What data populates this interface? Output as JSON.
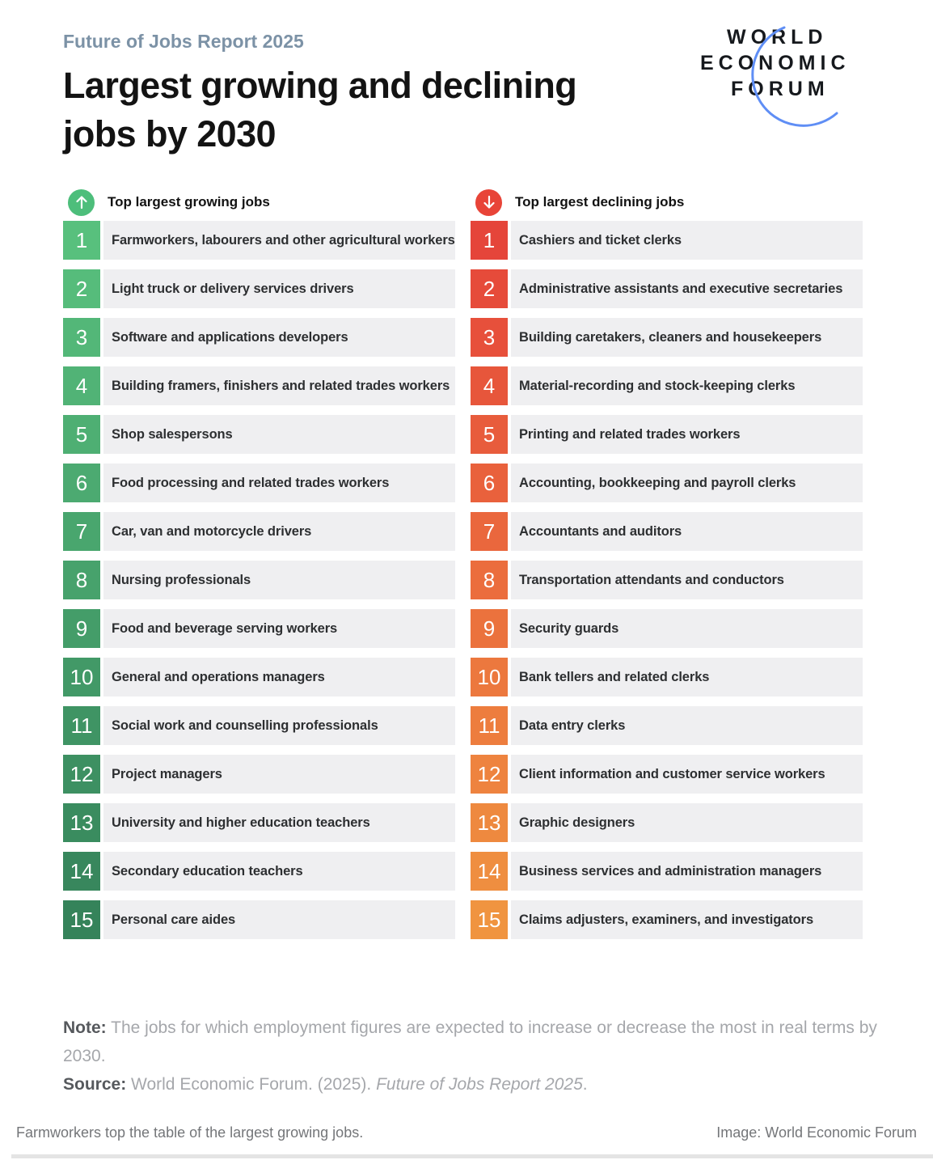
{
  "header": {
    "eyebrow": "Future of Jobs Report 2025",
    "title_line1": "Largest growing and declining",
    "title_line2": "jobs by 2030",
    "logo": {
      "line1": "WORLD",
      "line2": "ECONOMIC",
      "line3": "FORUM",
      "arc_color": "#5F8EF5",
      "text_color": "#16191D"
    }
  },
  "columns": [
    {
      "id": "growing",
      "header": "Top largest growing jobs",
      "icon": "arrow-up-icon",
      "accent": "#4DBE7B",
      "badge_from": "#58C07D",
      "badge_to": "#35835A",
      "items_key": "growing"
    },
    {
      "id": "declining",
      "header": "Top largest declining jobs",
      "icon": "arrow-down-icon",
      "accent": "#E84438",
      "badge_from": "#E5453A",
      "badge_to": "#F09440",
      "items_key": "declining"
    }
  ],
  "chart_data": {
    "type": "table",
    "title": "Largest growing and declining jobs by 2030",
    "subtitle": "Future of Jobs Report 2025",
    "columns": [
      "Top largest growing jobs",
      "Top largest declining jobs"
    ],
    "growing": [
      "Farmworkers, labourers and other agricultural workers",
      "Light truck or delivery services drivers",
      "Software and applications developers",
      "Building framers, finishers and related trades workers",
      "Shop salespersons",
      "Food processing and related trades workers",
      "Car, van and motorcycle drivers",
      "Nursing professionals",
      "Food and beverage serving workers",
      "General and operations managers",
      "Social work and counselling professionals",
      "Project managers",
      "University and higher education teachers",
      "Secondary education teachers",
      "Personal care aides"
    ],
    "declining": [
      "Cashiers and ticket clerks",
      "Administrative assistants and executive secretaries",
      "Building caretakers, cleaners and housekeepers",
      "Material-recording and stock-keeping clerks",
      "Printing and related trades workers",
      "Accounting, bookkeeping and payroll clerks",
      "Accountants and auditors",
      "Transportation attendants and conductors",
      "Security guards",
      "Bank tellers and related clerks",
      "Data entry clerks",
      "Client information and customer service workers",
      "Graphic designers",
      "Business services and administration managers",
      "Claims adjusters, examiners, and investigators"
    ]
  },
  "footer": {
    "note_label": "Note:",
    "note_text": "The jobs for which employment figures are expected to increase or decrease the most in real terms by 2030.",
    "source_label": "Source:",
    "source_text": "World Economic Forum. (2025).",
    "source_italic": "Future of Jobs Report 2025",
    "source_period": "."
  },
  "caption": {
    "left": "Farmworkers top the table of the largest growing jobs.",
    "right": "Image: World Economic Forum"
  },
  "row_background": "#EFEFF1"
}
